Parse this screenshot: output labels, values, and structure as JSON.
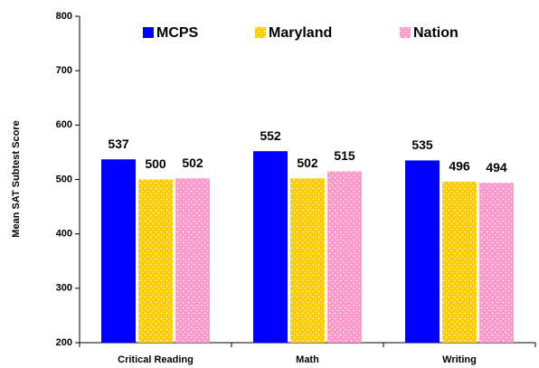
{
  "chart_data": {
    "type": "bar",
    "y_label": "Mean SAT Subtest Score",
    "categories": [
      "Critical Reading",
      "Math",
      "Writing"
    ],
    "series": [
      {
        "name": "MCPS",
        "color": "#0000ff",
        "values": [
          537,
          552,
          535
        ]
      },
      {
        "name": "Maryland",
        "color": "#ffcc00",
        "values": [
          500,
          502,
          496
        ]
      },
      {
        "name": "Nation",
        "color": "#ff99cc",
        "values": [
          502,
          515,
          494
        ]
      }
    ],
    "ylim": [
      200,
      800
    ],
    "yticks": [
      200,
      300,
      400,
      500,
      600,
      700,
      800
    ],
    "legend": "top",
    "grid": false
  }
}
